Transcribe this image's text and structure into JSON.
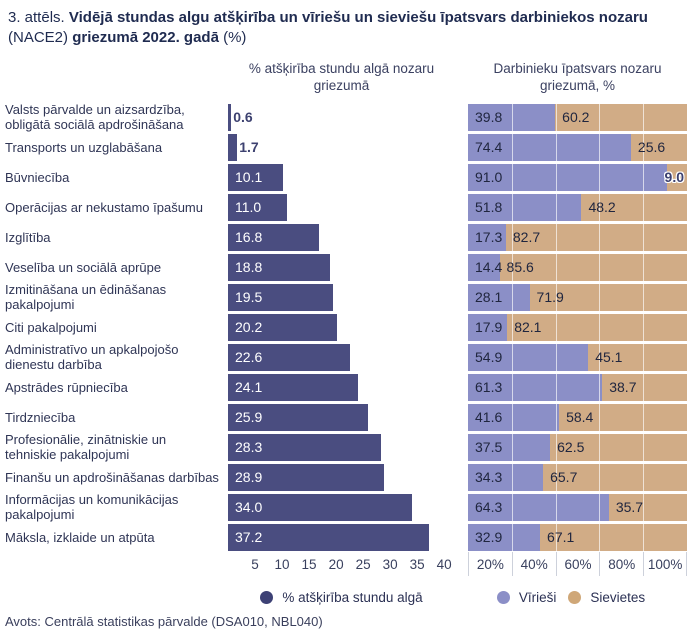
{
  "title": {
    "t1": "3. attēls. ",
    "t2": "Vidējā stundas algu atšķirība un vīriešu un sieviešu īpatsvars darbiniekos nozaru",
    "t3": " (NACE2) ",
    "t4": "griezumā 2022. gadā",
    "t5": " (%)"
  },
  "panel_headers": {
    "left": "% atšķirība stundu algā nozaru griezumā",
    "right": "Darbinieku īpatsvars nozaru griezumā, %"
  },
  "chart_data": {
    "type": "bar",
    "orientation": "horizontal",
    "categories": [
      "Valsts pārvalde un aizsardzība, obligātā sociālā apdrošināšana",
      "Transports un uzglabāšana",
      "Būvniecība",
      "Operācijas ar nekustamo īpašumu",
      "Izglītība",
      "Veselība un sociālā aprūpe",
      "Izmitināšana un ēdināšanas pakalpojumi",
      "Citi pakalpojumi",
      "Administratīvo un apkalpojošo dienestu darbība",
      "Apstrādes rūpniecība",
      "Tirdzniecība",
      "Profesionālie, zinātniskie un tehniskie pakalpojumi",
      "Finanšu un apdrošināšanas darbības",
      "Informācijas un komunikācijas pakalpojumi",
      "Māksla, izklaide un atpūta"
    ],
    "series": [
      {
        "name": "% atšķirība stundu algā",
        "panel": "left",
        "color": "#4a4d80",
        "values": [
          0.6,
          1.7,
          10.1,
          11.0,
          16.8,
          18.8,
          19.5,
          20.2,
          22.6,
          24.1,
          25.9,
          28.3,
          28.9,
          34.0,
          37.2
        ]
      },
      {
        "name": "Vīrieši",
        "panel": "right",
        "color": "#8b8fc7",
        "values": [
          39.8,
          74.4,
          91.0,
          51.8,
          17.3,
          14.4,
          28.1,
          17.9,
          54.9,
          61.3,
          41.6,
          37.5,
          34.3,
          64.3,
          32.9
        ]
      },
      {
        "name": "Sievietes",
        "panel": "right",
        "color": "#d1ac86",
        "values": [
          60.2,
          25.6,
          9.0,
          48.2,
          82.7,
          85.6,
          71.9,
          82.1,
          45.1,
          38.7,
          58.4,
          62.5,
          65.7,
          35.7,
          67.1
        ]
      }
    ],
    "left_axis": {
      "ticks": [
        5,
        10,
        15,
        20,
        25,
        30,
        35,
        40
      ],
      "max": 42
    },
    "right_axis": {
      "ticks": [
        "20%",
        "40%",
        "60%",
        "80%",
        "100%"
      ],
      "max": 100,
      "gridlines": [
        20,
        40,
        60,
        80
      ]
    },
    "legend_position": "bottom"
  },
  "legend": {
    "paygap": {
      "label": "% atšķirība stundu algā",
      "color": "#3d4175"
    },
    "men": {
      "label": "Vīrieši",
      "color": "#8b8fc7"
    },
    "women": {
      "label": "Sievietes",
      "color": "#cfa778"
    }
  },
  "footer": "Avots: Centrālā statistikas pārvalde (DSA010, NBL040)"
}
